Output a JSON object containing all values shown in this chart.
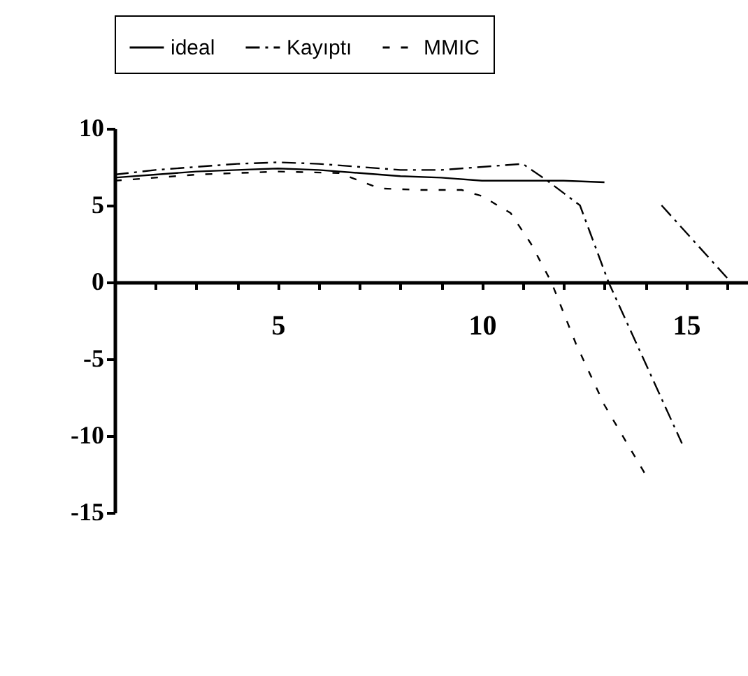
{
  "chart_data": {
    "type": "line",
    "x": [
      1,
      2,
      3,
      4,
      5,
      6,
      7,
      8,
      9,
      10,
      11,
      12,
      13
    ],
    "series": [
      {
        "name": "ideal",
        "color": "#000000",
        "line_style": "solid",
        "values": [
          6.8,
          7.0,
          7.2,
          7.3,
          7.4,
          7.3,
          7.1,
          6.9,
          6.8,
          6.6,
          6.6,
          6.6,
          6.5
        ]
      },
      {
        "name": "Kayıptı",
        "color": "#000000",
        "line_style": "dashed",
        "x": [
          1,
          2,
          3,
          4,
          5,
          6,
          7,
          8,
          9,
          10,
          11,
          11.6,
          12.4,
          13.1,
          14.9,
          null,
          14.4,
          16.1
        ],
        "values": [
          7.0,
          7.3,
          7.5,
          7.7,
          7.8,
          7.7,
          7.5,
          7.3,
          7.3,
          7.5,
          7.7,
          6.6,
          5,
          0,
          -10.5,
          null,
          5,
          0
        ]
      },
      {
        "name": "MMIC",
        "color": "#000000",
        "line_style": "dotted",
        "x": [
          1,
          3,
          5,
          6.5,
          7.5,
          8.5,
          9.5,
          10,
          10.7,
          11.2,
          11.7,
          12.3,
          13,
          14
        ],
        "values": [
          6.6,
          7.0,
          7.2,
          7.1,
          6.1,
          6.0,
          6.0,
          5.6,
          4.5,
          2.5,
          0,
          -4,
          -8,
          -12.5
        ]
      }
    ],
    "xlim": [
      1,
      17.1
    ],
    "xticks": [
      {
        "value": 1,
        "label": null
      },
      {
        "value": 2,
        "label": null
      },
      {
        "value": 3,
        "label": null
      },
      {
        "value": 4,
        "label": null
      },
      5,
      {
        "value": 6,
        "label": null
      },
      {
        "value": 7,
        "label": null
      },
      {
        "value": 8,
        "label": null
      },
      {
        "value": 9,
        "label": null
      },
      10,
      {
        "value": 11,
        "label": null
      },
      {
        "value": 12,
        "label": null
      },
      {
        "value": 13,
        "label": null
      },
      {
        "value": 14,
        "label": null
      },
      15,
      {
        "value": 16,
        "label": null
      },
      {
        "value": 17,
        "label": null
      }
    ],
    "ylim": [
      -15,
      10
    ],
    "yticks": [
      -15,
      -10,
      -5,
      0,
      5,
      10
    ],
    "legend": "top",
    "grid": false
  }
}
